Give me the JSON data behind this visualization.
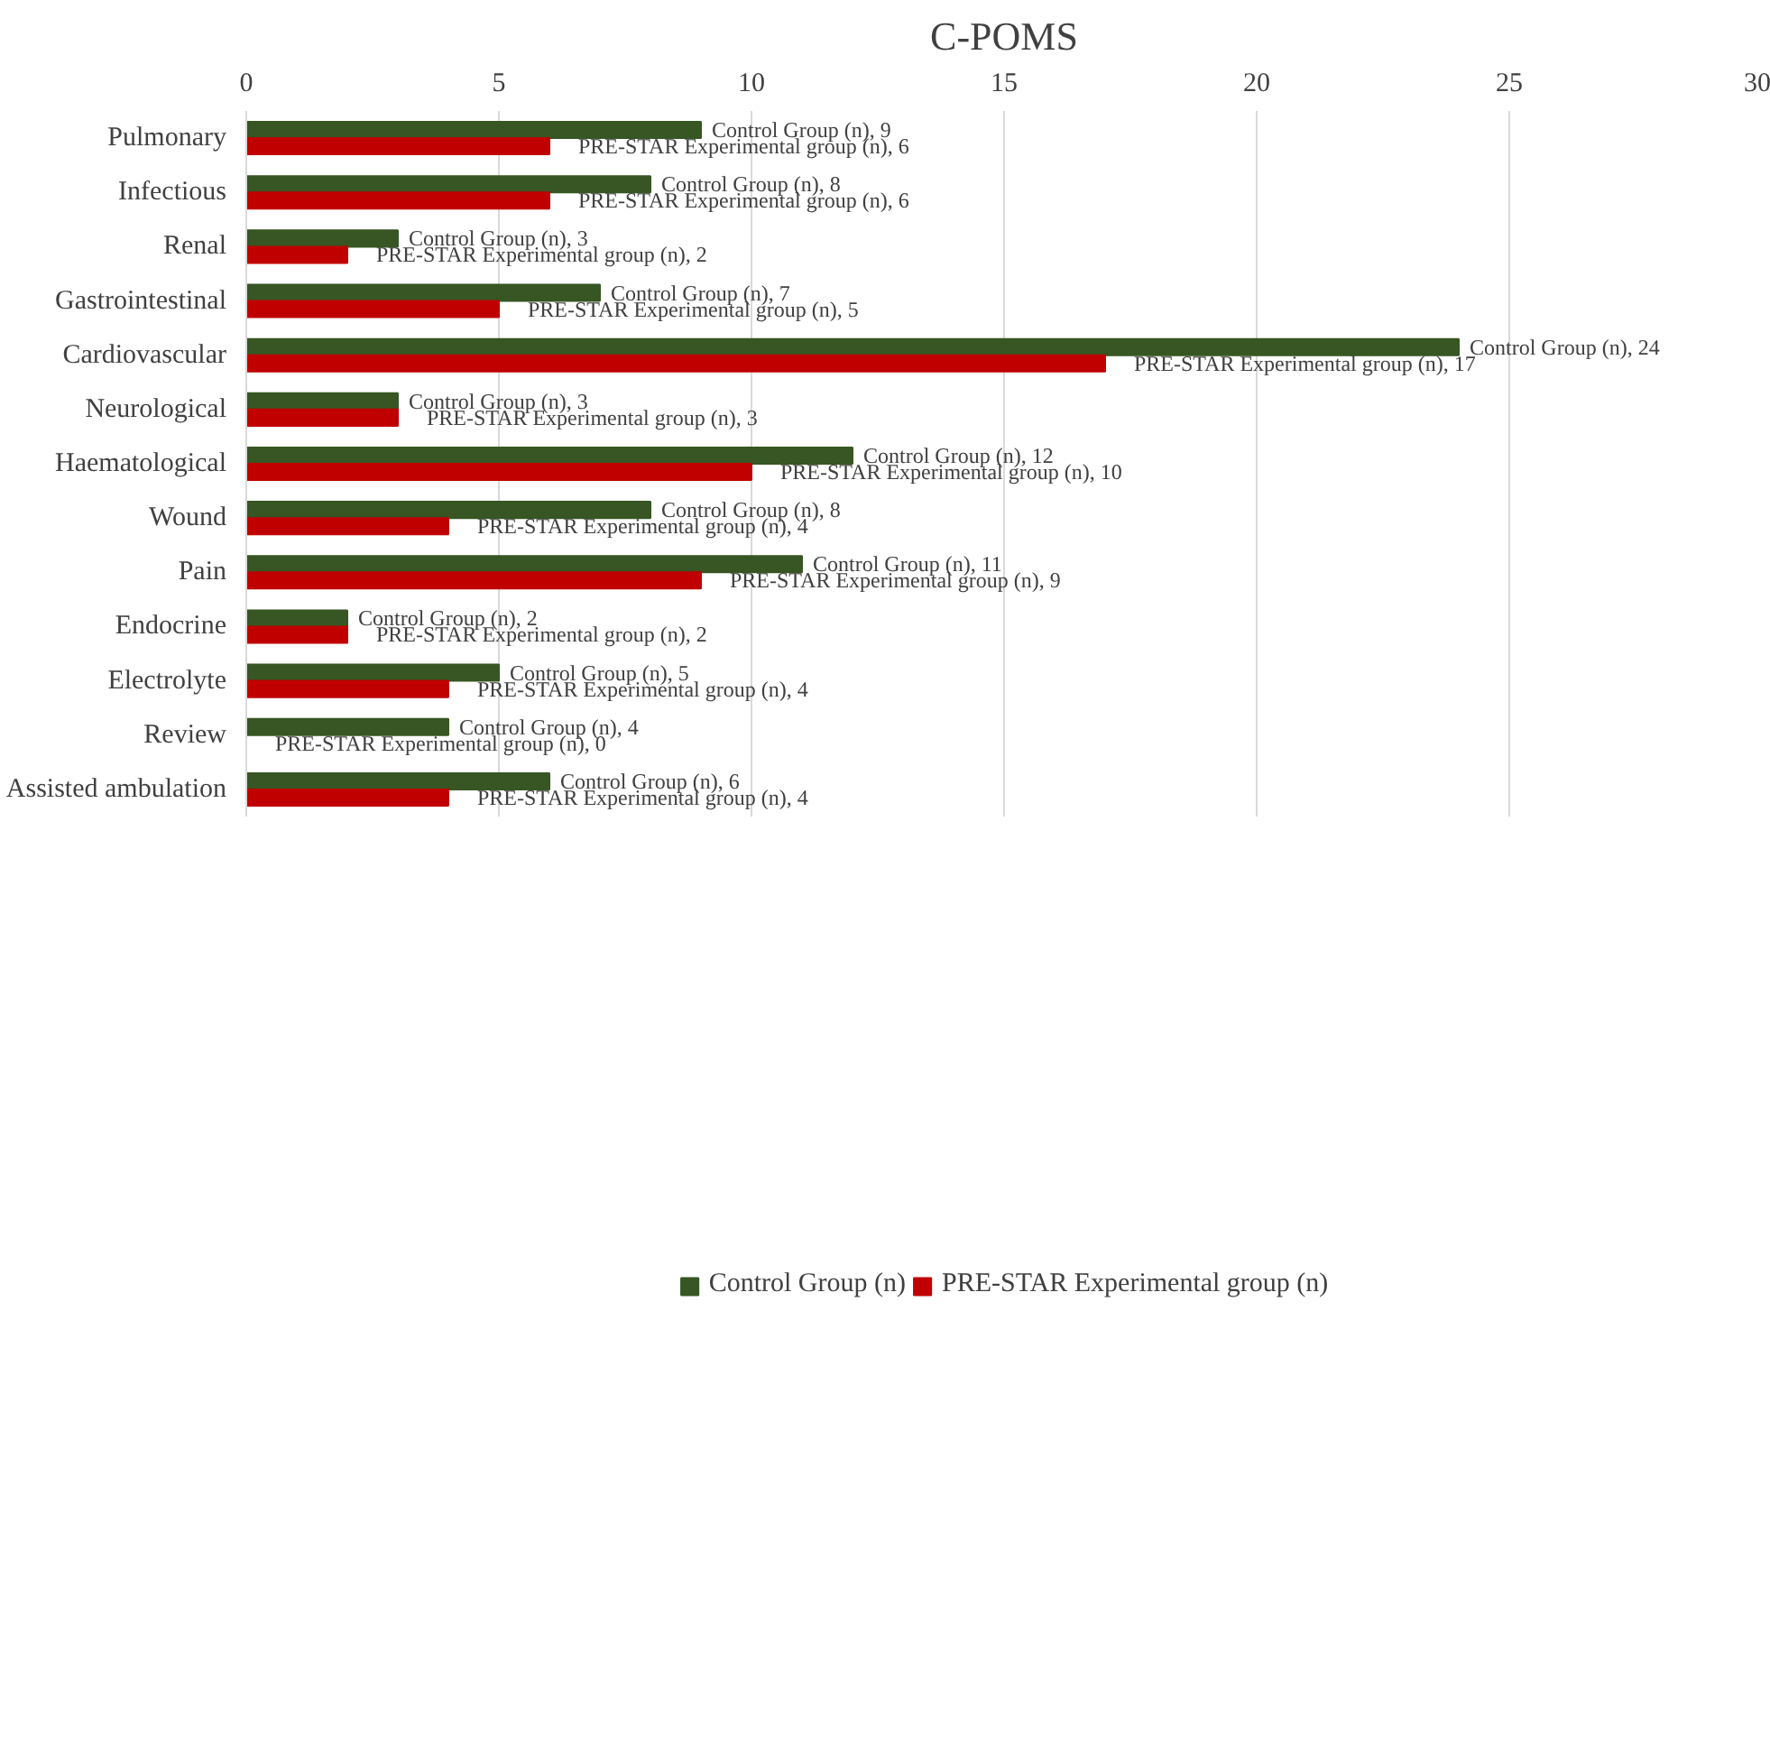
{
  "chart_data": {
    "type": "bar",
    "orientation": "horizontal",
    "title": "C-POMS",
    "categories": [
      "Pulmonary",
      "Infectious",
      "Renal",
      "Gastrointestinal",
      "Cardiovascular",
      "Neurological",
      "Haematological",
      "Wound",
      "Pain",
      "Endocrine",
      "Electrolyte",
      "Review",
      "Assisted ambulation"
    ],
    "series": [
      {
        "name": "Control Group (n)",
        "color": "#375623",
        "values": [
          9,
          8,
          3,
          7,
          24,
          3,
          12,
          8,
          11,
          2,
          5,
          4,
          6
        ],
        "value_labels": [
          "Control Group (n), 9",
          "Control Group (n), 8",
          "Control Group (n), 3",
          "Control Group (n), 7",
          "Control Group (n), 24",
          "Control Group (n), 3",
          "Control Group (n), 12",
          "Control Group (n), 8",
          "Control Group (n), 11",
          "Control Group (n), 2",
          "Control Group (n), 5",
          "Control Group (n), 4",
          "Control Group (n), 6"
        ]
      },
      {
        "name": "PRE-STAR Experimental group (n)",
        "color": "#c00000",
        "values": [
          6,
          6,
          2,
          5,
          17,
          3,
          10,
          4,
          9,
          2,
          4,
          0,
          4
        ],
        "value_labels": [
          "PRE-STAR Experimental group (n), 6",
          "PRE-STAR Experimental group (n), 6",
          "PRE-STAR Experimental group (n), 2",
          "PRE-STAR Experimental group (n), 5",
          "PRE-STAR Experimental group (n), 17",
          "PRE-STAR Experimental group (n), 3",
          "PRE-STAR Experimental group (n), 10",
          "PRE-STAR Experimental group (n), 4",
          "PRE-STAR Experimental group (n), 9",
          "PRE-STAR Experimental group (n), 2",
          "PRE-STAR Experimental group (n), 4",
          "PRE-STAR Experimental group (n), 0",
          "PRE-STAR Experimental group (n), 4"
        ]
      }
    ],
    "xlim": [
      0,
      30
    ],
    "xticks": [
      0,
      5,
      10,
      15,
      20,
      25,
      30
    ],
    "grid": "x",
    "legend": "bottom"
  }
}
